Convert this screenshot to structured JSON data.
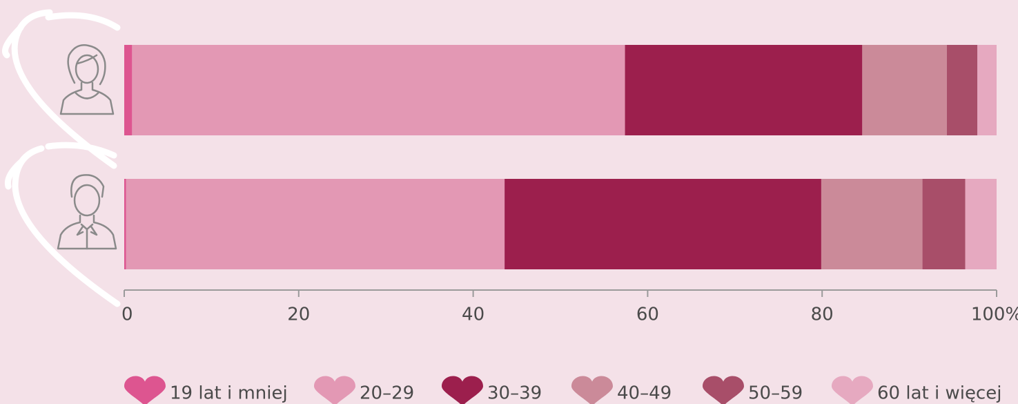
{
  "chart_data": {
    "type": "stacked-barh",
    "categories": [
      null,
      null
    ],
    "series": [
      {
        "name": "19 lat i mniej",
        "color": "#dd5590",
        "values": [
          0.9,
          0.2
        ]
      },
      {
        "name": "20–29",
        "color": "#e398b4",
        "values": [
          56.5,
          43.4
        ]
      },
      {
        "name": "30–39",
        "color": "#9c1f4d",
        "values": [
          27.2,
          36.3
        ]
      },
      {
        "name": "40–49",
        "color": "#cb8a99",
        "values": [
          9.7,
          11.6
        ]
      },
      {
        "name": "50–59",
        "color": "#a84e69",
        "values": [
          3.5,
          4.9
        ]
      },
      {
        "name": "60 lat i więcej",
        "color": "#e6a9c0",
        "values": [
          2.2,
          3.6
        ]
      }
    ],
    "xlim": [
      0,
      100
    ],
    "xticks": [
      0,
      20,
      40,
      60,
      80,
      {
        "value": 100,
        "label": "100%"
      }
    ],
    "legend": "bottom"
  }
}
